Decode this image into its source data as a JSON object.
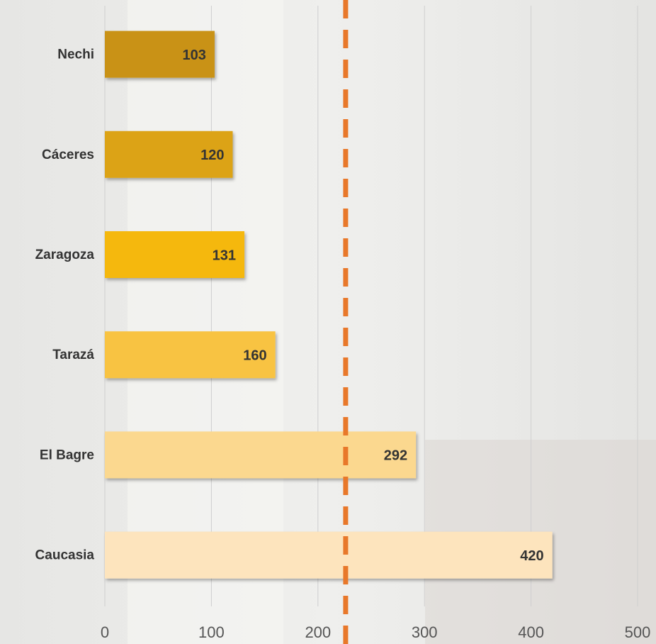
{
  "chart_data": {
    "type": "hbar",
    "categories": [
      "Nechi",
      "Cáceres",
      "Zaragoza",
      "Tarazá",
      "El Bagre",
      "Caucasia"
    ],
    "values": [
      103,
      120,
      131,
      160,
      292,
      420
    ],
    "colors": [
      "#c99212",
      "#dca316",
      "#f5b80a",
      "#f8c343",
      "#fbd88f",
      "#fde4bd"
    ],
    "xlim": [
      0,
      500
    ],
    "xticks": [
      0,
      100,
      200,
      300,
      400,
      500
    ],
    "grid": true,
    "reference_line": {
      "value": 226,
      "color": "#e8782a"
    }
  }
}
